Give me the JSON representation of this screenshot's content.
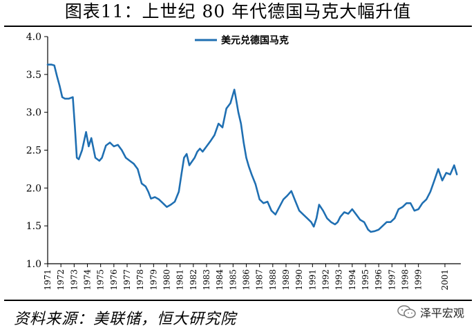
{
  "title": "图表11：上世纪 80 年代德国马克大幅升值",
  "source": "资料来源：美联储，恒大研究院",
  "watermark": {
    "label": "泽平宏观",
    "icon": "wechat-icon"
  },
  "colors": {
    "series": "#1f6fb2",
    "axis": "#000000",
    "text": "#000000"
  },
  "chart_data": {
    "type": "line",
    "title": "",
    "xlabel": "",
    "ylabel": "",
    "ylim": [
      1.0,
      4.0
    ],
    "yticks": [
      "1.0",
      "1.5",
      "2.0",
      "2.5",
      "3.0",
      "3.5",
      "4.0"
    ],
    "xticks": [
      "1971",
      "1972",
      "1973",
      "1974",
      "1975",
      "1976",
      "1977",
      "1978",
      "1979",
      "1980",
      "1981",
      "1982",
      "1983",
      "1984",
      "1985",
      "1986",
      "1987",
      "1988",
      "1989",
      "1990",
      "1991",
      "1992",
      "1993",
      "1994",
      "1995",
      "1996",
      "1997",
      "1998",
      "1999",
      "2001"
    ],
    "grid": false,
    "legend": "top-center",
    "series": [
      {
        "name": "美元兑德国马克",
        "x": [
          1971.0,
          1971.3,
          1971.5,
          1971.7,
          1971.9,
          1972.1,
          1972.3,
          1972.6,
          1972.9,
          1973.05,
          1973.2,
          1973.35,
          1973.6,
          1973.9,
          1974.1,
          1974.3,
          1974.6,
          1974.9,
          1975.1,
          1975.4,
          1975.7,
          1976.0,
          1976.3,
          1976.6,
          1976.9,
          1977.2,
          1977.5,
          1977.8,
          1978.1,
          1978.4,
          1978.6,
          1978.8,
          1979.1,
          1979.4,
          1979.7,
          1980.0,
          1980.3,
          1980.6,
          1980.9,
          1981.1,
          1981.3,
          1981.5,
          1981.7,
          1981.9,
          1982.1,
          1982.3,
          1982.5,
          1982.7,
          1983.0,
          1983.3,
          1983.6,
          1983.9,
          1984.2,
          1984.5,
          1984.8,
          1985.1,
          1985.2,
          1985.4,
          1985.6,
          1985.8,
          1986.0,
          1986.2,
          1986.4,
          1986.7,
          1987.0,
          1987.3,
          1987.6,
          1987.9,
          1988.2,
          1988.5,
          1988.8,
          1989.1,
          1989.4,
          1989.7,
          1990.0,
          1990.3,
          1990.6,
          1990.9,
          1991.1,
          1991.3,
          1991.5,
          1991.8,
          1992.1,
          1992.4,
          1992.7,
          1992.9,
          1993.1,
          1993.4,
          1993.7,
          1994.0,
          1994.3,
          1994.6,
          1994.9,
          1995.2,
          1995.4,
          1995.7,
          1996.0,
          1996.3,
          1996.6,
          1996.9,
          1997.2,
          1997.5,
          1997.8,
          1998.1,
          1998.4,
          1998.7,
          1999.0,
          1999.3,
          1999.6,
          1999.9,
          2000.2,
          2000.5,
          2000.8,
          2001.1,
          2001.4,
          2001.7,
          2001.9
        ],
        "values": [
          3.63,
          3.63,
          3.62,
          3.48,
          3.35,
          3.2,
          3.18,
          3.18,
          3.2,
          2.82,
          2.4,
          2.38,
          2.5,
          2.74,
          2.55,
          2.66,
          2.4,
          2.36,
          2.4,
          2.56,
          2.6,
          2.55,
          2.57,
          2.5,
          2.4,
          2.36,
          2.32,
          2.25,
          2.06,
          2.02,
          1.95,
          1.86,
          1.88,
          1.85,
          1.8,
          1.75,
          1.78,
          1.82,
          1.95,
          2.18,
          2.4,
          2.45,
          2.3,
          2.35,
          2.4,
          2.48,
          2.52,
          2.48,
          2.55,
          2.62,
          2.7,
          2.85,
          2.8,
          3.05,
          3.12,
          3.3,
          3.2,
          3.0,
          2.85,
          2.6,
          2.4,
          2.28,
          2.18,
          2.05,
          1.85,
          1.8,
          1.82,
          1.7,
          1.65,
          1.75,
          1.85,
          1.9,
          1.96,
          1.83,
          1.7,
          1.65,
          1.6,
          1.55,
          1.49,
          1.6,
          1.78,
          1.7,
          1.6,
          1.55,
          1.52,
          1.55,
          1.62,
          1.68,
          1.66,
          1.72,
          1.65,
          1.58,
          1.55,
          1.45,
          1.42,
          1.43,
          1.45,
          1.5,
          1.55,
          1.55,
          1.6,
          1.72,
          1.75,
          1.8,
          1.8,
          1.7,
          1.72,
          1.8,
          1.85,
          1.95,
          2.1,
          2.25,
          2.1,
          2.2,
          2.18,
          2.3,
          2.18
        ]
      }
    ]
  }
}
